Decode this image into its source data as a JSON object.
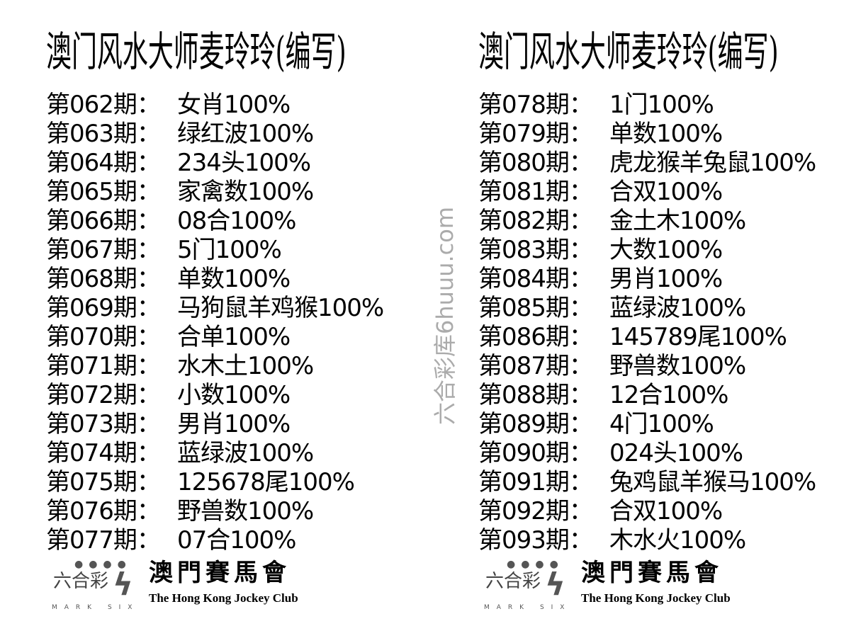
{
  "watermark": "六合彩库6huuu.com",
  "columns": [
    {
      "title": "澳门风水大师麦玲玲(编写)",
      "rows": [
        {
          "period": "第062期：",
          "value": "女肖100%"
        },
        {
          "period": "第063期：",
          "value": "绿红波100%"
        },
        {
          "period": "第064期：",
          "value": "234头100%"
        },
        {
          "period": "第065期：",
          "value": "家禽数100%"
        },
        {
          "period": "第066期：",
          "value": "08合100%"
        },
        {
          "period": "第067期：",
          "value": "5门100%"
        },
        {
          "period": "第068期：",
          "value": "单数100%"
        },
        {
          "period": "第069期：",
          "value": "马狗鼠羊鸡猴100%"
        },
        {
          "period": "第070期：",
          "value": "合单100%"
        },
        {
          "period": "第071期：",
          "value": "水木土100%"
        },
        {
          "period": "第072期：",
          "value": "小数100%"
        },
        {
          "period": "第073期：",
          "value": "男肖100%"
        },
        {
          "period": "第074期：",
          "value": "蓝绿波100%"
        },
        {
          "period": "第075期：",
          "value": "125678尾100%"
        },
        {
          "period": "第076期：",
          "value": "野兽数100%"
        },
        {
          "period": "第077期：",
          "value": "07合100%"
        }
      ],
      "logo": {
        "mark_six": "六合彩",
        "mark_six_en": "MARK SIX",
        "club_zh": "澳門賽馬會",
        "club_en": "The Hong Kong Jockey Club"
      }
    },
    {
      "title": "澳门风水大师麦玲玲(编写)",
      "rows": [
        {
          "period": "第078期：",
          "value": "1门100%"
        },
        {
          "period": "第079期：",
          "value": "单数100%"
        },
        {
          "period": "第080期：",
          "value": "虎龙猴羊兔鼠100%"
        },
        {
          "period": "第081期：",
          "value": "合双100%"
        },
        {
          "period": "第082期：",
          "value": "金土木100%"
        },
        {
          "period": "第083期：",
          "value": "大数100%"
        },
        {
          "period": "第084期：",
          "value": "男肖100%"
        },
        {
          "period": "第085期：",
          "value": "蓝绿波100%"
        },
        {
          "period": "第086期：",
          "value": "145789尾100%"
        },
        {
          "period": "第087期：",
          "value": "野兽数100%"
        },
        {
          "period": "第088期：",
          "value": "12合100%"
        },
        {
          "period": "第089期：",
          "value": "4门100%"
        },
        {
          "period": "第090期：",
          "value": "024头100%"
        },
        {
          "period": "第091期：",
          "value": "兔鸡鼠羊猴马100%"
        },
        {
          "period": "第092期：",
          "value": "合双100%"
        },
        {
          "period": "第093期：",
          "value": "木水火100%"
        }
      ],
      "logo": {
        "mark_six": "六合彩",
        "mark_six_en": "MARK SIX",
        "club_zh": "澳門賽馬會",
        "club_en": "The Hong Kong Jockey Club"
      }
    }
  ]
}
